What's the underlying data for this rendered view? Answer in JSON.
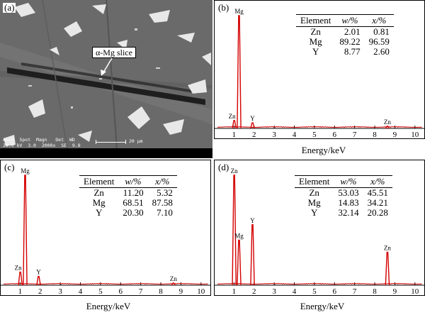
{
  "figure": {
    "panel_a": {
      "label": "(a)",
      "callout": "α-Mg slice",
      "sem_header": [
        "AccV",
        "Spot",
        "Magn",
        "Det",
        "WD"
      ],
      "sem_values": [
        "20.0 kV",
        "3.0",
        "2000x",
        "SE",
        "9.8"
      ],
      "scale_bar": "20 μm"
    },
    "table_headers": [
      "Element",
      "w/%",
      "x/%"
    ],
    "colors": {
      "spectrum": "#d40000",
      "axis": "#000000"
    }
  },
  "chart_data": [
    {
      "type": "line",
      "panel_label": "(b)",
      "xlabel": "Energy/keV",
      "ylabel": "",
      "xlim": [
        0,
        10.5
      ],
      "xticks": [
        1,
        2,
        3,
        4,
        5,
        6,
        7,
        8,
        9,
        10
      ],
      "peak_labels": [
        {
          "text": "Mg",
          "x": 1.25,
          "y": 1.0
        },
        {
          "text": "Zn",
          "x": 1.01,
          "y": 0.07
        },
        {
          "text": "Y",
          "x": 1.92,
          "y": 0.05
        },
        {
          "text": "Zn",
          "x": 8.63,
          "y": 0.02
        }
      ],
      "series": [
        {
          "values": [
            [
              1.01,
              0.07
            ],
            [
              1.25,
              1.0
            ],
            [
              1.92,
              0.05
            ],
            [
              8.63,
              0.02
            ]
          ]
        }
      ],
      "table": [
        [
          "Zn",
          "2.01",
          "0.81"
        ],
        [
          "Mg",
          "89.22",
          "96.59"
        ],
        [
          "Y",
          "8.77",
          "2.60"
        ]
      ]
    },
    {
      "type": "line",
      "panel_label": "(c)",
      "xlabel": "Energy/keV",
      "ylabel": "",
      "xlim": [
        0,
        10.5
      ],
      "xticks": [
        1,
        2,
        3,
        4,
        5,
        6,
        7,
        8,
        9,
        10
      ],
      "peak_labels": [
        {
          "text": "Mg",
          "x": 1.25,
          "y": 1.0
        },
        {
          "text": "Zn",
          "x": 1.01,
          "y": 0.12
        },
        {
          "text": "Y",
          "x": 1.92,
          "y": 0.08
        },
        {
          "text": "Zn",
          "x": 8.63,
          "y": 0.02
        }
      ],
      "series": [
        {
          "values": [
            [
              1.01,
              0.12
            ],
            [
              1.25,
              1.0
            ],
            [
              1.92,
              0.08
            ],
            [
              8.63,
              0.02
            ]
          ]
        }
      ],
      "table": [
        [
          "Zn",
          "11.20",
          "5.32"
        ],
        [
          "Mg",
          "68.51",
          "87.58"
        ],
        [
          "Y",
          "20.30",
          "7.10"
        ]
      ]
    },
    {
      "type": "line",
      "panel_label": "(d)",
      "xlabel": "Energy/keV",
      "ylabel": "",
      "xlim": [
        0,
        10.5
      ],
      "xticks": [
        1,
        2,
        3,
        4,
        5,
        6,
        7,
        8,
        9,
        10
      ],
      "peak_labels": [
        {
          "text": "Zn",
          "x": 1.01,
          "y": 1.0
        },
        {
          "text": "Mg",
          "x": 1.25,
          "y": 0.41
        },
        {
          "text": "Y",
          "x": 1.92,
          "y": 0.55
        },
        {
          "text": "Zn",
          "x": 8.63,
          "y": 0.3
        }
      ],
      "series": [
        {
          "values": [
            [
              1.01,
              1.0
            ],
            [
              1.25,
              0.41
            ],
            [
              1.92,
              0.55
            ],
            [
              8.63,
              0.3
            ]
          ]
        }
      ],
      "table": [
        [
          "Zn",
          "53.03",
          "45.51"
        ],
        [
          "Mg",
          "14.83",
          "34.21"
        ],
        [
          "Y",
          "32.14",
          "20.28"
        ]
      ]
    }
  ]
}
